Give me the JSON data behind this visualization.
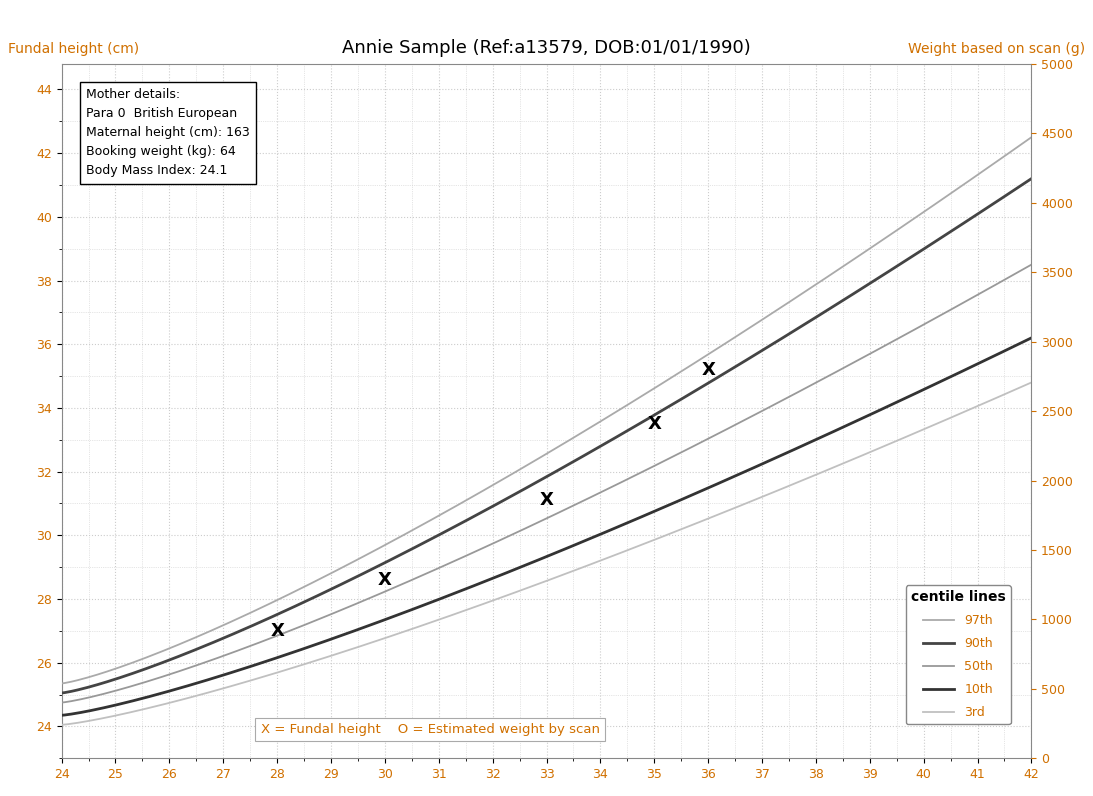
{
  "title": "Annie Sample (Ref:a13579, DOB:01/01/1990)",
  "ylabel_left": "Fundal height (cm)",
  "ylabel_right": "Weight based on scan (g)",
  "xlim": [
    24,
    42
  ],
  "ylim_left": [
    23.0,
    44.8
  ],
  "ylim_right": [
    0,
    5000
  ],
  "xticks": [
    24,
    25,
    26,
    27,
    28,
    29,
    30,
    31,
    32,
    33,
    34,
    35,
    36,
    37,
    38,
    39,
    40,
    41,
    42
  ],
  "yticks_left": [
    24,
    26,
    28,
    30,
    32,
    34,
    36,
    38,
    40,
    42,
    44
  ],
  "yticks_right": [
    0,
    500,
    1000,
    1500,
    2000,
    2500,
    3000,
    3500,
    4000,
    4500,
    5000
  ],
  "mother_details": [
    "Mother details:",
    "Para 0  British European",
    "Maternal height (cm): 163",
    "Booking weight (kg): 64",
    "Body Mass Index: 24.1"
  ],
  "legend_title": "centile lines",
  "legend_entries": [
    {
      "label": "97th",
      "color": "#aaaaaa",
      "lw": 1.3
    },
    {
      "label": "90th",
      "color": "#444444",
      "lw": 2.0
    },
    {
      "label": "50th",
      "color": "#999999",
      "lw": 1.3
    },
    {
      "label": "10th",
      "color": "#333333",
      "lw": 2.0
    },
    {
      "label": "3rd",
      "color": "#c0c0c0",
      "lw": 1.3
    }
  ],
  "curves": [
    {
      "name": "97th",
      "color": "#aaaaaa",
      "lw": 1.3,
      "y24": 25.35,
      "y42": 42.5,
      "pow": 1.25
    },
    {
      "name": "90th",
      "color": "#444444",
      "lw": 2.0,
      "y24": 25.05,
      "y42": 41.2,
      "pow": 1.25
    },
    {
      "name": "50th",
      "color": "#999999",
      "lw": 1.3,
      "y24": 24.75,
      "y42": 38.5,
      "pow": 1.25
    },
    {
      "name": "10th",
      "color": "#333333",
      "lw": 2.0,
      "y24": 24.35,
      "y42": 36.2,
      "pow": 1.25
    },
    {
      "name": "3rd",
      "color": "#c0c0c0",
      "lw": 1.3,
      "y24": 24.05,
      "y42": 34.8,
      "pow": 1.25
    }
  ],
  "fundal_height_x": [
    28,
    30,
    33,
    35,
    36
  ],
  "fundal_height_y": [
    27.0,
    28.6,
    31.1,
    33.5,
    35.2
  ],
  "annotation_text": "X = Fundal height    O = Estimated weight by scan",
  "background_color": "#ffffff",
  "grid_color": "#cccccc",
  "label_color": "#000000",
  "tick_color": "#000000",
  "orange_color": "#d07000",
  "title_color": "#000000"
}
